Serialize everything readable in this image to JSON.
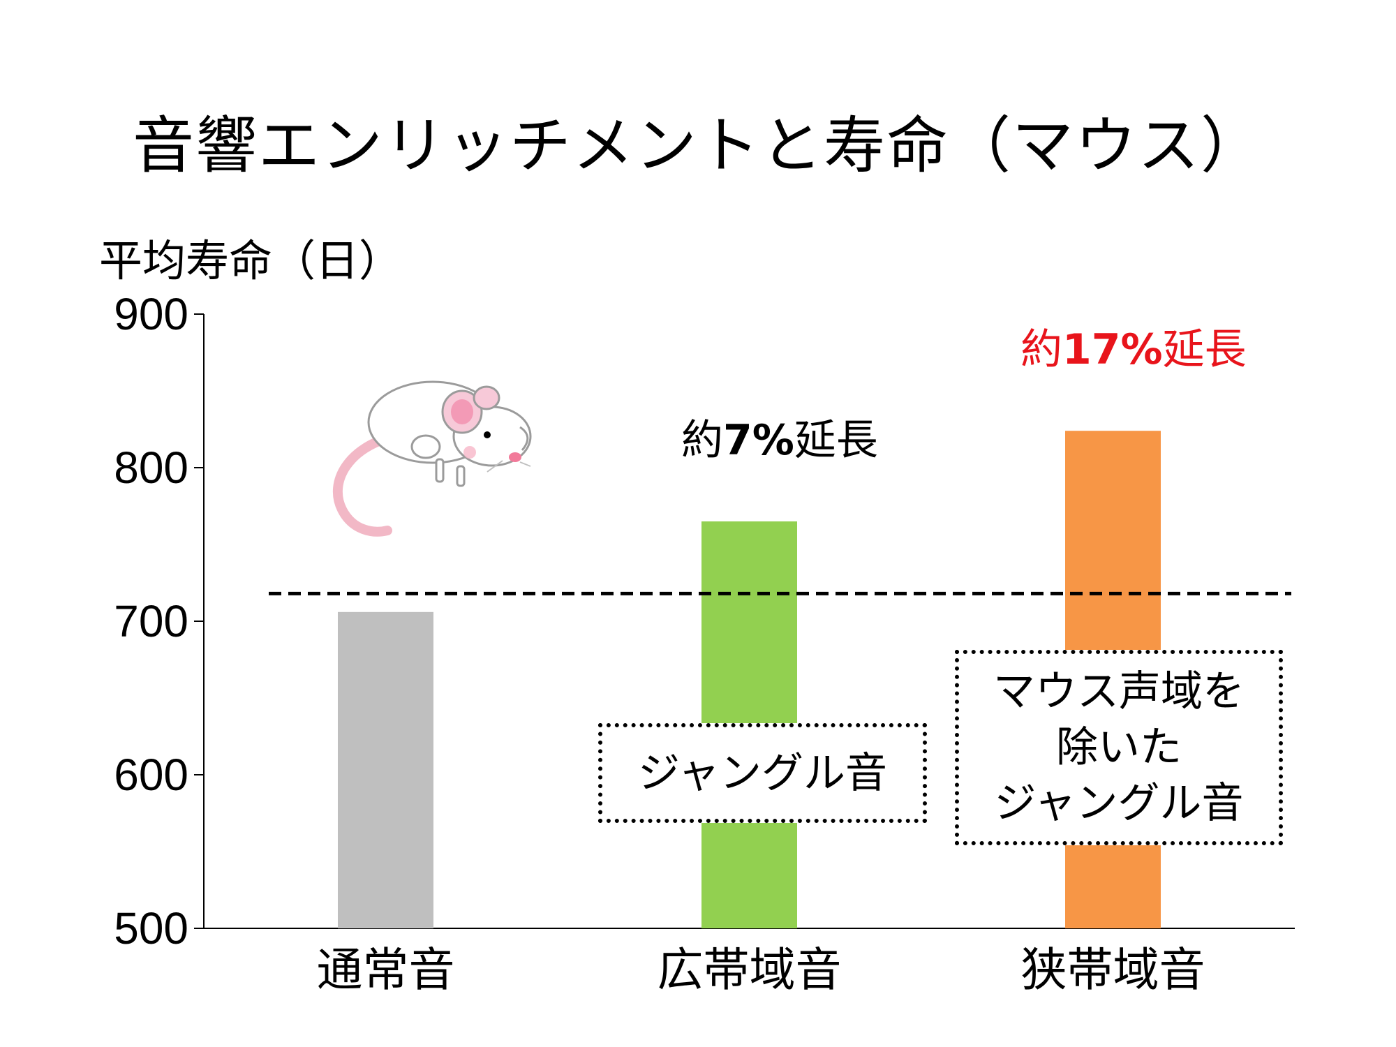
{
  "chart_data": {
    "type": "bar",
    "title": "音響エンリッチメントと寿命（マウス）",
    "ylabel": "平均寿命（日）",
    "xlabel": "",
    "categories": [
      "通常音",
      "広帯域音",
      "狭帯域音"
    ],
    "values": [
      706,
      765,
      824
    ],
    "colors": [
      "#bfbfbf",
      "#92d050",
      "#f79646"
    ],
    "ylim": [
      500,
      900
    ],
    "yticks": [
      500,
      600,
      700,
      800,
      900
    ],
    "reference_line": {
      "value": 718,
      "style": "dashed",
      "color": "#000000"
    },
    "grid": false,
    "legend": "none"
  },
  "annotations": {
    "broadband": {
      "prefix": "約",
      "value": "7%",
      "suffix": "延長",
      "color": "#000000"
    },
    "narrowband": {
      "prefix": "約",
      "value": "17%",
      "suffix": "延長",
      "color": "#e8141b"
    }
  },
  "boxes": {
    "broadband": [
      "ジャングル音"
    ],
    "narrowband": [
      "マウス声域を",
      "除いた",
      "ジャングル音"
    ]
  },
  "illustration": {
    "icon": "mouse-icon"
  }
}
